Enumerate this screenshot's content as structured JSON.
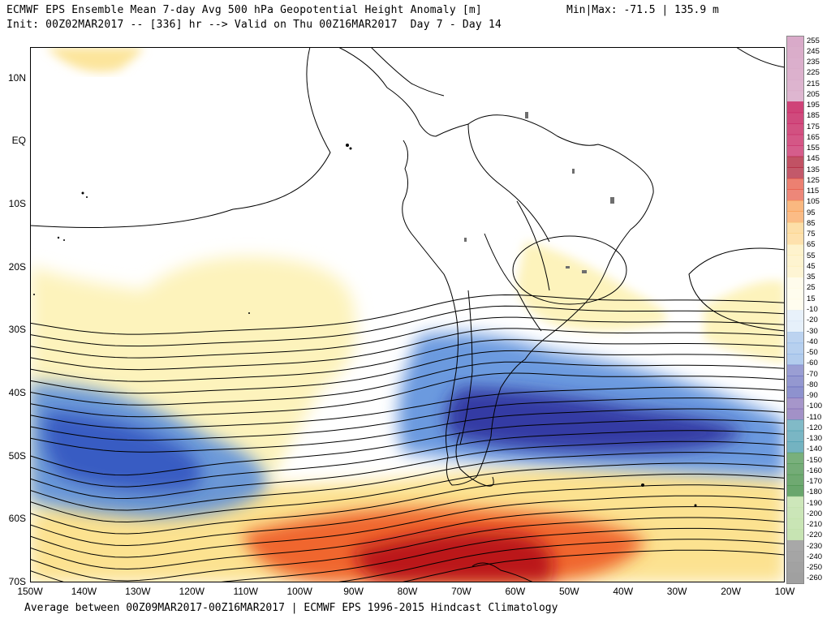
{
  "header": {
    "line1": "ECMWF EPS Ensemble Mean 7-day Avg 500 hPa Geopotential Height Anomaly [m]",
    "line2": "Init: 00Z02MAR2017 -- [336] hr --> Valid on Thu 00Z16MAR2017  Day 7 - Day 14",
    "minmax": "Min|Max: -71.5 | 135.9 m"
  },
  "footer": "Average between 00Z09MAR2017-00Z16MAR2017 | ECMWF EPS 1996-2015 Hindcast Climatology",
  "latitude_labels": [
    {
      "text": "10N",
      "lat": 10
    },
    {
      "text": "EQ",
      "lat": 0
    },
    {
      "text": "10S",
      "lat": -10
    },
    {
      "text": "20S",
      "lat": -20
    },
    {
      "text": "30S",
      "lat": -30
    },
    {
      "text": "40S",
      "lat": -40
    },
    {
      "text": "50S",
      "lat": -50
    },
    {
      "text": "60S",
      "lat": -60
    },
    {
      "text": "70S",
      "lat": -70
    }
  ],
  "longitude_labels": [
    {
      "text": "150W",
      "lon": -150
    },
    {
      "text": "140W",
      "lon": -140
    },
    {
      "text": "130W",
      "lon": -130
    },
    {
      "text": "120W",
      "lon": -120
    },
    {
      "text": "110W",
      "lon": -110
    },
    {
      "text": "100W",
      "lon": -100
    },
    {
      "text": "90W",
      "lon": -90
    },
    {
      "text": "80W",
      "lon": -80
    },
    {
      "text": "70W",
      "lon": -70
    },
    {
      "text": "60W",
      "lon": -60
    },
    {
      "text": "50W",
      "lon": -50
    },
    {
      "text": "40W",
      "lon": -40
    },
    {
      "text": "30W",
      "lon": -30
    },
    {
      "text": "20W",
      "lon": -20
    },
    {
      "text": "10W",
      "lon": -10
    }
  ],
  "colorbar": {
    "labels": [
      "255",
      "245",
      "235",
      "225",
      "215",
      "205",
      "195",
      "185",
      "175",
      "165",
      "155",
      "145",
      "135",
      "125",
      "115",
      "105",
      "95",
      "85",
      "75",
      "65",
      "55",
      "45",
      "35",
      "25",
      "15",
      "-10",
      "-20",
      "-30",
      "-40",
      "-50",
      "-60",
      "-70",
      "-80",
      "-90",
      "-100",
      "-110",
      "-120",
      "-130",
      "-140",
      "-150",
      "-160",
      "-170",
      "-180",
      "-190",
      "-200",
      "-210",
      "-220",
      "-230",
      "-240",
      "-250",
      "-260"
    ],
    "colors": {
      "pink": "#d8a9c8",
      "magenta": "#c41a5a",
      "dark_red": "#a3001a",
      "red": "#e1341c",
      "orange": "#f7821e",
      "light_orange": "#fcc055",
      "yellow": "#fce592",
      "pale_yellow": "#fef8cc",
      "light_blue": "#b7d3ef",
      "blue": "#4a88d6",
      "navy": "#222a9e",
      "purple": "#5a3c9c",
      "teal": "#2a8aa0",
      "green": "#3a8a3e",
      "pale_green": "#bfe0a8",
      "gray": "#9e9e9e"
    }
  },
  "map": {
    "lon_range": [
      -150,
      -10
    ],
    "lat_range": [
      -70,
      15
    ],
    "colors": {
      "pale_yellow": "#fdf3bc",
      "yellow": "#fce08a",
      "orange": "#f9a341",
      "red_orange": "#ee5a25",
      "red": "#d32a17",
      "dark_red": "#b50f16",
      "light_blue": "#b3cff0",
      "blue": "#5b8fdb",
      "deep_blue": "#2a4dbd",
      "navy": "#2a2a9a"
    }
  }
}
